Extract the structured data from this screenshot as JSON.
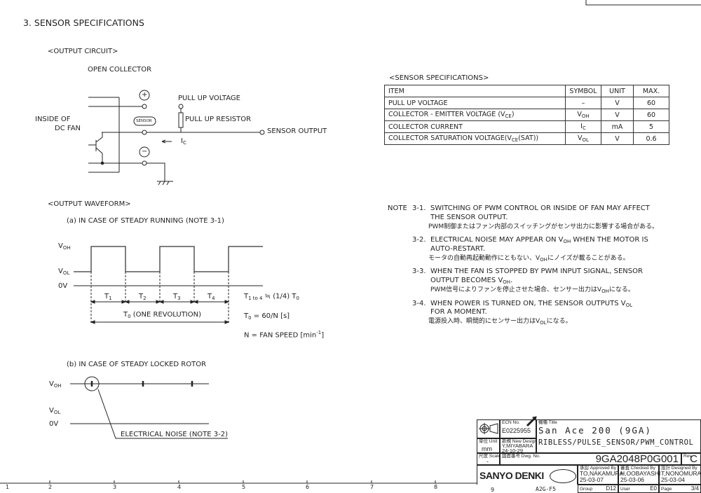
{
  "section_title": "3. SENSOR SPECIFICATIONS",
  "circuit": {
    "heading": "<OUTPUT CIRCUIT>",
    "type": "OPEN COLLECTOR",
    "inside_label_1": "INSIDE OF",
    "inside_label_2": "DC FAN",
    "plus": "+",
    "sensor": "SENSOR",
    "minus": "−",
    "pull_up_voltage": "PULL UP VOLTAGE",
    "pull_up_resistor": "PULL UP RESISTOR",
    "sensor_output": "SENSOR OUTPUT",
    "current": "I",
    "current_sub": "C"
  },
  "spec_table": {
    "heading": "<SENSOR SPECIFICATIONS>",
    "headers": [
      "ITEM",
      "SYMBOL",
      "UNIT",
      "MAX."
    ],
    "rows": [
      {
        "item": "PULL UP VOLTAGE",
        "symbol": "–",
        "symbol_sub": "",
        "unit": "V",
        "max": "60"
      },
      {
        "item": "COLLECTOR - EMITTER VOLTAGE (V",
        "item_sub": "CE",
        "item_end": ")",
        "symbol": "V",
        "symbol_sub": "OH",
        "unit": "V",
        "max": "60"
      },
      {
        "item": "COLLECTOR CURRENT",
        "symbol": "I",
        "symbol_sub": "C",
        "unit": "mA",
        "max": "5"
      },
      {
        "item": "COLLECTOR SATURATION VOLTAGE(V",
        "item_sub": "CE",
        "item_end": "(SAT))",
        "symbol": "V",
        "symbol_sub": "OL",
        "unit": "V",
        "max": "0.6"
      }
    ]
  },
  "waveform": {
    "heading": "<OUTPUT WAVEFORM>",
    "case_a": "(a) IN CASE OF STEADY RUNNING (NOTE 3-1)",
    "case_b": "(b) IN CASE OF STEADY LOCKED ROTOR",
    "voh": "V",
    "voh_sub": "OH",
    "vol": "V",
    "vol_sub": "OL",
    "zero": "0V",
    "periods": [
      "T",
      "T",
      "T",
      "T"
    ],
    "period_subs": [
      "1",
      "2",
      "3",
      "4"
    ],
    "t0": "T",
    "t0_sub": "0",
    "t0_label": " (ONE REVOLUTION)",
    "formula1": "T",
    "formula1_sub": "1 to 4",
    "formula1_end": " ≒ (1/4) T",
    "formula1_end_sub": "0",
    "formula2": "T",
    "formula2_sub": "0",
    "formula2_end": "  = 60/N [s]",
    "formula3": "N = FAN SPEED [min",
    "formula3_sup": "-1",
    "formula3_end": "]",
    "noise_label": "ELECTRICAL NOISE (NOTE 3-2)"
  },
  "notes": {
    "label": "NOTE",
    "items": [
      {
        "num": "3-1.",
        "l1": "SWITCHING OF PWM CONTROL OR INSIDE OF FAN MAY AFFECT",
        "l2": "THE SENSOR OUTPUT.",
        "jp": "PWM制御またはファン内部のスイッチングがセンサ出力に影響する場合がある。"
      },
      {
        "num": "3-2.",
        "l1a": "ELECTRICAL NOISE MAY APPEAR ON V",
        "l1sub": "OH",
        "l1b": " WHEN THE MOTOR IS",
        "l2": "AUTO-RESTART.",
        "jp": "モータの自動再起動動作にともない、V",
        "jp_sub": "OH",
        "jp_end": "にノイズが載ることがある。"
      },
      {
        "num": "3-3.",
        "l1": "WHEN THE FAN IS STOPPED BY PWM INPUT SIGNAL, SENSOR",
        "l2": "OUTPUT BECOMES V",
        "l2sub": "OH",
        "l2end": ".",
        "jp": "PWM信号によりファンを停止させた場合、センサー出力はV",
        "jp_sub": "OH",
        "jp_end": "になる。"
      },
      {
        "num": "3-4.",
        "l1": "WHEN POWER IS TURNED ON, THE SENSOR OUTPUTS V",
        "l1sub": "OL",
        "l2": "FOR A MOMENT.",
        "jp": "電源投入時、瞬間的にセンサー出力はV",
        "jp_sub": "OL",
        "jp_end": "になる。"
      }
    ]
  },
  "ruler": [
    "1",
    "2",
    "3",
    "4",
    "5",
    "6",
    "7",
    "8",
    "9"
  ],
  "title_block": {
    "ecn_label": "ECN No.",
    "ecn": "E0225955",
    "title_label": "機種 Title",
    "title1": "San Ace 200 (9GA)",
    "title2": "RIBLESS/PULSE_SENSOR/PWM_CONTROL",
    "unit_label": "単位 Unit",
    "unit": "mm",
    "new_design_label": "新規 New Design",
    "new_design_by": "Y,MIYABARA",
    "new_design_date": "24-10-29",
    "scale_label": "尺度 Scale",
    "scale": "-",
    "dwg_label": "図面番号 Dwg. No.",
    "dwg_no": "9GA2048P0G001",
    "rev_label": "Rev.",
    "rev": "C",
    "company": "SANYO DENKI",
    "stamp": "SANYO DENKI CO.,LTD.",
    "zone": "A2G-F5",
    "approved_label": "承認 Approved By",
    "approved_by": "TO,NAKAMURA",
    "approved_date": "25-03-07",
    "checked_label": "審査 Checked By",
    "checked_by": "H,OOBAYASHI",
    "checked_date": "25-03-06",
    "designed_label": "設計 Designed By",
    "designed_by": "T,NONOMURA",
    "designed_date": "25-03-04",
    "group_label": "Group",
    "group": "D12",
    "user_label": "User",
    "user": "E0",
    "page_label": "Page",
    "page": "3/4"
  }
}
